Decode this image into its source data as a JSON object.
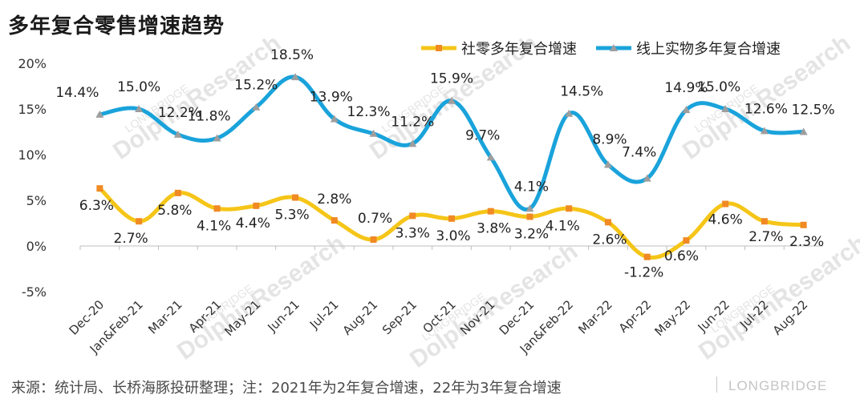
{
  "title": "多年复合零售增速趋势",
  "source": "来源：统计局、长桥海豚投研整理；注：2021年为2年复合增速，22年为3年复合增速",
  "watermark": {
    "brand": "LONGBRIDGE",
    "research": "DolphinResearch"
  },
  "chart_data": {
    "type": "line",
    "categories": [
      "Dec-20",
      "Jan&Feb-21",
      "Mar-21",
      "Apr-21",
      "May-21",
      "Jun-21",
      "Jul-21",
      "Aug-21",
      "Sep-21",
      "Oct-21",
      "Nov-21",
      "Dec-21",
      "Jan&Feb-22",
      "Mar-22",
      "Apr-22",
      "May-22",
      "Jun-22",
      "Jul-22",
      "Aug-22"
    ],
    "ylim": [
      -5,
      20
    ],
    "yticks": [
      "-5%",
      "0%",
      "5%",
      "10%",
      "15%",
      "20%"
    ],
    "ytick_values": [
      -5,
      0,
      5,
      10,
      15,
      20
    ],
    "grid": false,
    "legend_position": "top-right",
    "series": [
      {
        "name": "社零多年复合增速",
        "color": "#F5C518",
        "marker": "square",
        "marker_color": "#F08A24",
        "values": [
          6.3,
          2.7,
          5.8,
          4.1,
          4.4,
          5.3,
          2.8,
          0.7,
          3.3,
          3.0,
          3.8,
          3.2,
          4.1,
          2.6,
          -1.2,
          0.6,
          4.6,
          2.7,
          2.3
        ],
        "labels": [
          "6.3%",
          "2.7%",
          "5.8%",
          "4.1%",
          "4.4%",
          "5.3%",
          "2.8%",
          "0.7%",
          "3.3%",
          "3.0%",
          "3.8%",
          "3.2%",
          "4.1%",
          "2.6%",
          "-1.2%",
          "0.6%",
          "4.6%",
          "2.7%",
          "2.3%"
        ]
      },
      {
        "name": "线上实物多年复合增速",
        "color": "#1AA3DB",
        "marker": "triangle",
        "marker_color": "#9E9E9E",
        "values": [
          14.4,
          15.0,
          12.2,
          11.8,
          15.2,
          18.5,
          13.9,
          12.3,
          11.2,
          15.9,
          9.7,
          4.1,
          14.5,
          8.9,
          7.4,
          14.9,
          15.0,
          12.6,
          12.5
        ],
        "labels": [
          "14.4%",
          "15.0%",
          "12.2%",
          "11.8%",
          "15.2%",
          "18.5%",
          "13.9%",
          "12.3%",
          "11.2%",
          "15.9%",
          "9.7%",
          "4.1%",
          "14.5%",
          "8.9%",
          "7.4%",
          "14.9%",
          "15.0%",
          "12.6%",
          "12.5%"
        ]
      }
    ]
  }
}
